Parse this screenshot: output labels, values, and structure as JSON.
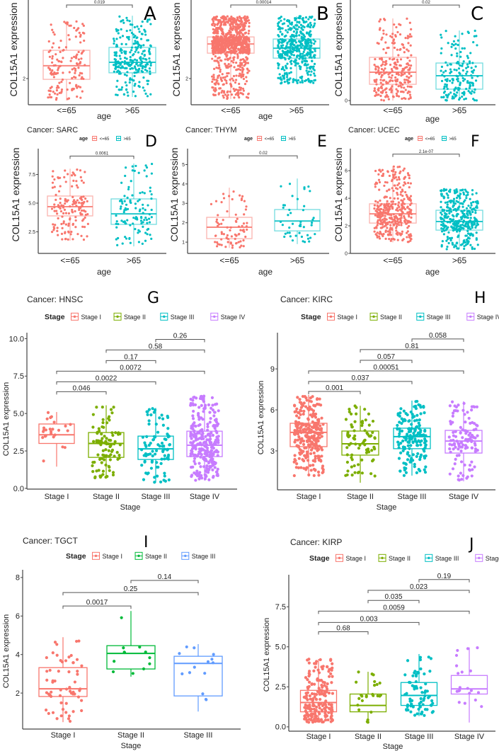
{
  "chart_data": [
    {
      "type": "box",
      "panel_letter": "A",
      "title": "",
      "ylabel": "COL15A1 expression",
      "xlabel": "age",
      "ylim": [
        1,
        5
      ],
      "yticks": [
        "2"
      ],
      "groups": [
        {
          "label": "<=65",
          "color": "#F8766D",
          "stats": {
            "lo": 1.16,
            "q1": 1.97,
            "median": 2.49,
            "q3": 3.08,
            "hi": 4.2
          }
        },
        {
          "label": ">65",
          "color": "#00BFC4",
          "stats": {
            "lo": 1.3,
            "q1": 2.22,
            "median": 2.62,
            "q3": 3.19,
            "hi": 4.4
          }
        }
      ],
      "comparisons": [
        {
          "groups": [
            0,
            1
          ],
          "p": "0.019",
          "label_y": 4.81
        }
      ]
    },
    {
      "type": "box",
      "panel_letter": "B",
      "title": "",
      "ylabel": "COL15A1 expression",
      "xlabel": "age",
      "ylim": [
        1,
        5
      ],
      "yticks": [
        "2"
      ],
      "groups": [
        {
          "label": "<=65",
          "color": "#F8766D",
          "stats": {
            "lo": 1.22,
            "q1": 2.97,
            "median": 3.32,
            "q3": 3.59,
            "hi": 4.38
          }
        },
        {
          "label": ">65",
          "color": "#00BFC4",
          "stats": {
            "lo": 1.81,
            "q1": 2.78,
            "median": 3.16,
            "q3": 3.51,
            "hi": 4.38
          }
        }
      ],
      "comparisons": [
        {
          "groups": [
            0,
            1
          ],
          "p": "0.00014",
          "label_y": 4.81
        }
      ]
    },
    {
      "type": "box",
      "panel_letter": "C",
      "title": "",
      "ylabel": "COL15A1 expression",
      "xlabel": "age",
      "ylim": [
        -0.25,
        6
      ],
      "yticks": [
        "0"
      ],
      "groups": [
        {
          "label": "<=65",
          "color": "#F8766D",
          "stats": {
            "lo": 0,
            "q1": 0.97,
            "median": 1.69,
            "q3": 2.58,
            "hi": 4.9
          }
        },
        {
          "label": ">65",
          "color": "#00BFC4",
          "stats": {
            "lo": 0,
            "q1": 0.68,
            "median": 1.48,
            "q3": 2.24,
            "hi": 4.18
          }
        }
      ],
      "comparisons": [
        {
          "groups": [
            0,
            1
          ],
          "p": "0.02",
          "label_y": 5.7
        }
      ]
    },
    {
      "type": "box",
      "panel_letter": "D",
      "title": "Cancer: SARC",
      "legend_title": "age",
      "ylabel": "COL15A1 expression",
      "xlabel": "age",
      "ylim": [
        0.62,
        9.75
      ],
      "yticks": [
        "2.5",
        "5.0",
        "7.5"
      ],
      "groups": [
        {
          "label": "<=65",
          "color": "#F8766D",
          "stats": {
            "lo": 1.73,
            "q1": 3.89,
            "median": 4.69,
            "q3": 5.62,
            "hi": 8.0
          }
        },
        {
          "label": ">65",
          "color": "#00BFC4",
          "stats": {
            "lo": 1.23,
            "q1": 3.15,
            "median": 4.07,
            "q3": 5.37,
            "hi": 8.46
          }
        }
      ],
      "comparisons": [
        {
          "groups": [
            0,
            1
          ],
          "p": "0.0061",
          "label_y": 9.1
        }
      ]
    },
    {
      "type": "box",
      "panel_letter": "E",
      "title": "Cancer: THYM",
      "legend_title": "age",
      "ylabel": "COL15A1 expression",
      "xlabel": "age",
      "ylim": [
        0.42,
        5.82
      ],
      "yticks": [
        "1",
        "2",
        "3",
        "4",
        "5"
      ],
      "groups": [
        {
          "label": "<=65",
          "color": "#F8766D",
          "stats": {
            "lo": 0.7,
            "q1": 1.18,
            "median": 1.77,
            "q3": 2.28,
            "hi": 3.81
          }
        },
        {
          "label": ">65",
          "color": "#00BFC4",
          "stats": {
            "lo": 0.9,
            "q1": 1.58,
            "median": 2.09,
            "q3": 2.68,
            "hi": 4.28
          }
        }
      ],
      "comparisons": [
        {
          "groups": [
            0,
            1
          ],
          "p": "0.02",
          "label_y": 5.45
        }
      ]
    },
    {
      "type": "box",
      "panel_letter": "F",
      "title": "Cancer: UCEC",
      "legend_title": "age",
      "ylabel": "COL15A1 expression",
      "xlabel": "age",
      "ylim": [
        0,
        7.6
      ],
      "yticks": [
        "0",
        "2",
        "4",
        "6"
      ],
      "groups": [
        {
          "label": "<=65",
          "color": "#F8766D",
          "stats": {
            "lo": 0.8,
            "q1": 2.2,
            "median": 2.87,
            "q3": 3.6,
            "hi": 6.3
          }
        },
        {
          "label": ">65",
          "color": "#00BFC4",
          "stats": {
            "lo": 0.3,
            "q1": 1.69,
            "median": 2.31,
            "q3": 3.13,
            "hi": 4.67
          }
        }
      ],
      "comparisons": [
        {
          "groups": [
            0,
            1
          ],
          "p": "2.1e-07",
          "label_y": 7.2
        }
      ]
    },
    {
      "type": "box",
      "panel_letter": "G",
      "title": "Cancer: HNSC",
      "legend_title": "Stage",
      "ylabel": "COL15A1 expression",
      "xlabel": "Stage",
      "ylim": [
        -0.05,
        10.4
      ],
      "yticks": [
        "0.0",
        "2.5",
        "5.0",
        "7.5",
        "10.0"
      ],
      "groups": [
        {
          "label": "Stage I",
          "color": "#F8766D",
          "stats": {
            "lo": 1.45,
            "q1": 3.0,
            "median": 3.58,
            "q3": 4.3,
            "hi": 5.1
          }
        },
        {
          "label": "Stage II",
          "color": "#7CAE00",
          "stats": {
            "lo": 0.7,
            "q1": 2.07,
            "median": 3.0,
            "q3": 3.73,
            "hi": 5.55
          }
        },
        {
          "label": "Stage III",
          "color": "#00BFC4",
          "stats": {
            "lo": 0.38,
            "q1": 1.93,
            "median": 2.64,
            "q3": 3.49,
            "hi": 5.37
          }
        },
        {
          "label": "Stage IV",
          "color": "#C77CFF",
          "stats": {
            "lo": 0.52,
            "q1": 2.12,
            "median": 2.88,
            "q3": 3.82,
            "hi": 6.2
          }
        }
      ],
      "comparisons": [
        {
          "groups": [
            2,
            3
          ],
          "p": "0.26",
          "label_y": 9.95
        },
        {
          "groups": [
            1,
            3
          ],
          "p": "0.58",
          "label_y": 9.25
        },
        {
          "groups": [
            1,
            2
          ],
          "p": "0.17",
          "label_y": 8.54
        },
        {
          "groups": [
            0,
            3
          ],
          "p": "0.0072",
          "label_y": 7.83
        },
        {
          "groups": [
            0,
            2
          ],
          "p": "0.0022",
          "label_y": 7.12
        },
        {
          "groups": [
            0,
            1
          ],
          "p": "0.046",
          "label_y": 6.46
        }
      ]
    },
    {
      "type": "box",
      "panel_letter": "H",
      "title": "Cancer: KIRC",
      "legend_title": "Stage",
      "ylabel": "COL15A1 expression",
      "xlabel": "Stage",
      "ylim": [
        0.15,
        11.65
      ],
      "yticks": [
        "3",
        "6",
        "9"
      ],
      "groups": [
        {
          "label": "Stage I",
          "color": "#F8766D",
          "stats": {
            "lo": 1.13,
            "q1": 3.31,
            "median": 4.35,
            "q3": 5.02,
            "hi": 7.1
          }
        },
        {
          "label": "Stage II",
          "color": "#7CAE00",
          "stats": {
            "lo": 0.67,
            "q1": 2.69,
            "median": 3.52,
            "q3": 4.45,
            "hi": 6.3
          }
        },
        {
          "label": "Stage III",
          "color": "#00BFC4",
          "stats": {
            "lo": 1.19,
            "q1": 3.16,
            "median": 4.04,
            "q3": 4.66,
            "hi": 6.68
          }
        },
        {
          "label": "Stage IV",
          "color": "#C77CFF",
          "stats": {
            "lo": 0.77,
            "q1": 2.84,
            "median": 3.72,
            "q3": 4.5,
            "hi": 6.63
          }
        }
      ],
      "comparisons": [
        {
          "groups": [
            2,
            3
          ],
          "p": "0.058",
          "label_y": 11.19
        },
        {
          "groups": [
            1,
            3
          ],
          "p": "0.81",
          "label_y": 10.41
        },
        {
          "groups": [
            1,
            2
          ],
          "p": "0.057",
          "label_y": 9.63
        },
        {
          "groups": [
            0,
            3
          ],
          "p": "0.00051",
          "label_y": 8.85
        },
        {
          "groups": [
            0,
            2
          ],
          "p": "0.037",
          "label_y": 8.08
        },
        {
          "groups": [
            0,
            1
          ],
          "p": "0.001",
          "label_y": 7.35
        }
      ]
    },
    {
      "type": "box",
      "panel_letter": "I",
      "title": "Cancer: TGCT",
      "legend_title": "Stage",
      "ylabel": "COL15A1 expression",
      "xlabel": "Stage",
      "ylim": [
        0.13,
        8.4
      ],
      "yticks": [
        "2",
        "4",
        "6",
        "8"
      ],
      "groups": [
        {
          "label": "Stage I",
          "color": "#F8766D",
          "stats": {
            "lo": 0.49,
            "q1": 1.82,
            "median": 2.22,
            "q3": 3.32,
            "hi": 4.9
          }
        },
        {
          "label": "Stage II",
          "color": "#00BA38",
          "stats": {
            "lo": 2.85,
            "q1": 3.25,
            "median": 4.06,
            "q3": 4.46,
            "hi": 6.26
          }
        },
        {
          "label": "Stage III",
          "color": "#619CFF",
          "stats": {
            "lo": 1.04,
            "q1": 1.85,
            "median": 3.54,
            "q3": 3.91,
            "hi": 4.54
          }
        }
      ],
      "comparisons": [
        {
          "groups": [
            1,
            2
          ],
          "p": "0.14",
          "label_y": 7.85
        },
        {
          "groups": [
            0,
            2
          ],
          "p": "0.25",
          "label_y": 7.22
        },
        {
          "groups": [
            0,
            1
          ],
          "p": "0.0017",
          "label_y": 6.52
        }
      ]
    },
    {
      "type": "box",
      "panel_letter": "J",
      "title": "Cancer: KIRP",
      "legend_title": "Stage",
      "ylabel": "COL15A1 expression",
      "xlabel": "Stage",
      "ylim": [
        -0.27,
        9.5
      ],
      "yticks": [
        "0.0",
        "2.5",
        "5.0",
        "7.5"
      ],
      "groups": [
        {
          "label": "Stage I",
          "color": "#F8766D",
          "stats": {
            "lo": 0.27,
            "q1": 0.94,
            "median": 1.52,
            "q3": 2.28,
            "hi": 4.24
          }
        },
        {
          "label": "Stage II",
          "color": "#7CAE00",
          "stats": {
            "lo": 0.22,
            "q1": 0.94,
            "median": 1.34,
            "q3": 2.05,
            "hi": 3.44
          }
        },
        {
          "label": "Stage III",
          "color": "#00BFC4",
          "stats": {
            "lo": 0.67,
            "q1": 1.34,
            "median": 1.96,
            "q3": 2.77,
            "hi": 4.55
          }
        },
        {
          "label": "Stage IV",
          "color": "#C77CFF",
          "stats": {
            "lo": 0.27,
            "q1": 2.05,
            "median": 2.37,
            "q3": 3.21,
            "hi": 4.96
          }
        }
      ],
      "comparisons": [
        {
          "groups": [
            2,
            3
          ],
          "p": "0.19",
          "label_y": 9.2
        },
        {
          "groups": [
            1,
            3
          ],
          "p": "0.023",
          "label_y": 8.53
        },
        {
          "groups": [
            1,
            2
          ],
          "p": "0.035",
          "label_y": 7.9
        },
        {
          "groups": [
            0,
            3
          ],
          "p": "0.0059",
          "label_y": 7.23
        },
        {
          "groups": [
            0,
            2
          ],
          "p": "0.003",
          "label_y": 6.52
        },
        {
          "groups": [
            0,
            1
          ],
          "p": "0.68",
          "label_y": 5.94
        }
      ]
    }
  ]
}
